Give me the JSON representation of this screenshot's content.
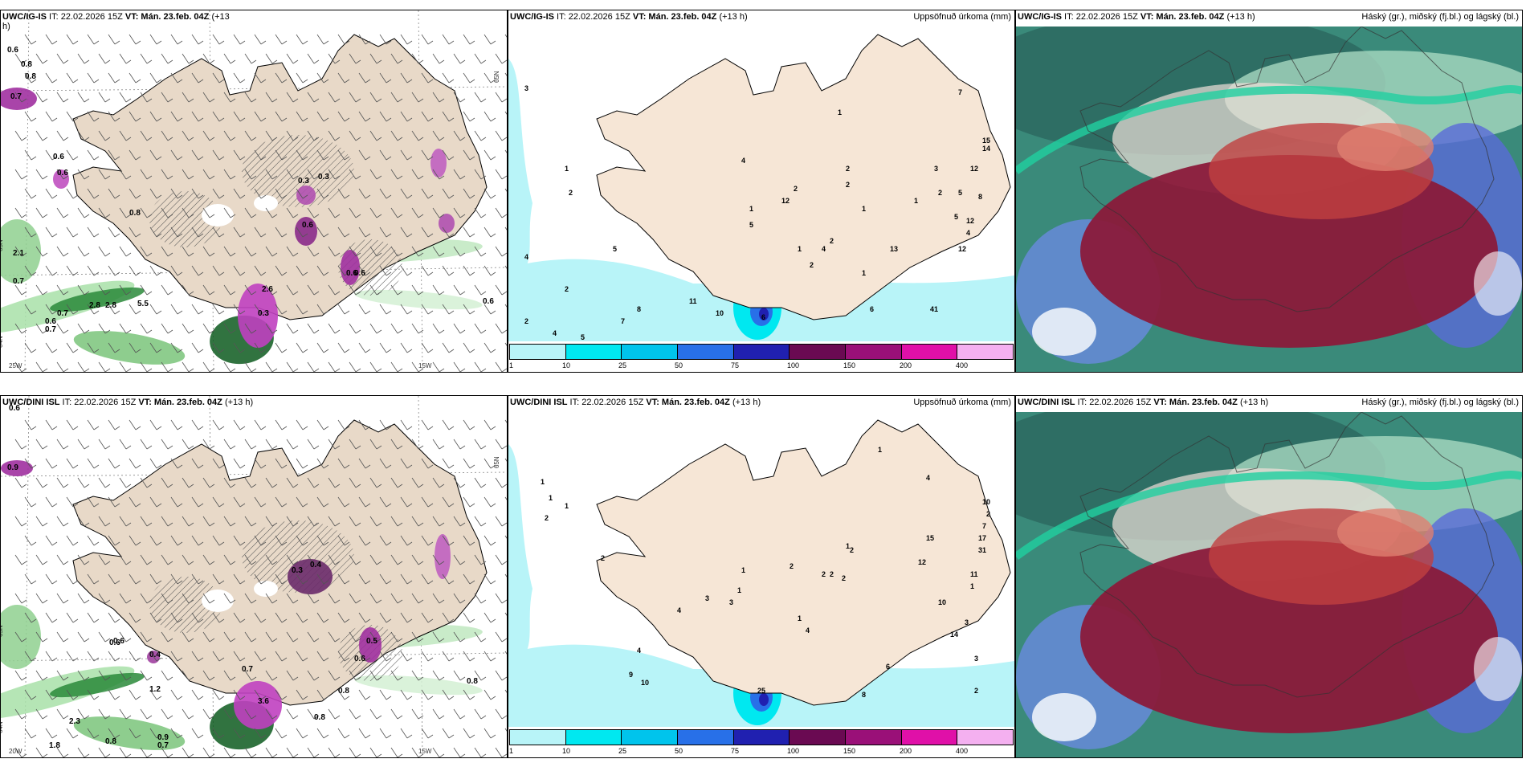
{
  "panels": [
    {
      "id": "top-left",
      "title_model": "UWC/IG-IS",
      "title_rest": " IT: 22.02.2026 15Z ",
      "title_vt": "VT: Mán. 23.feb. 04Z",
      "title_suffix": " (+13",
      "title_line2": "h)",
      "right_title": "",
      "values": [
        "0.6",
        "0.8",
        "0.8",
        "0.7",
        "0.6",
        "0.6",
        "0.8",
        "2.1",
        "0.7",
        "0.6",
        "0.7",
        "2.8",
        "2.8",
        "5.5",
        "0.3",
        "0.3",
        "0.6",
        "2.6",
        "0.3",
        "0.6",
        "0.6",
        "0.7",
        "0.6"
      ],
      "axis": [
        "25W",
        "15W",
        "64N",
        "65N",
        "65N"
      ]
    },
    {
      "id": "top-middle",
      "title_model": "UWC/IG-IS",
      "title_rest": " IT: 22.02.2026 15Z ",
      "title_vt": "VT: Mán. 23.feb. 04Z",
      "title_suffix": " (+13 h)",
      "right_title": "Uppsöfnuð úrkoma (mm)",
      "values": [
        "3",
        "1",
        "2",
        "4",
        "5",
        "2",
        "2",
        "4",
        "5",
        "7",
        "8",
        "11",
        "10",
        "6",
        "6",
        "41",
        "13",
        "4",
        "12",
        "5",
        "1",
        "7",
        "2",
        "2",
        "1",
        "1",
        "2",
        "2",
        "1",
        "15",
        "14",
        "12",
        "8",
        "5",
        "12",
        "4",
        "5",
        "12",
        "3",
        "1",
        "2",
        "4",
        "2",
        "1"
      ]
    },
    {
      "id": "top-right",
      "title_model": "UWC/IG-IS",
      "title_rest": " IT: 22.02.2026 15Z ",
      "title_vt": "VT: Mán. 23.feb. 04Z",
      "title_suffix": " (+13 h)",
      "right_title": "Háský (gr.), miðský (fj.bl.) og lágský (bl.)"
    },
    {
      "id": "bottom-left",
      "title_model": "UWC/DINI ISL",
      "title_rest": " IT: 22.02.2026 15Z ",
      "title_vt": "VT: Mán. 23.feb. 04Z",
      "title_suffix": " (+13 h)",
      "right_title": "",
      "values": [
        "0.9",
        "0.6",
        "0.6",
        "0.4",
        "0.3",
        "0.4",
        "0.6",
        "0.5",
        "0.7",
        "0.6",
        "0.8",
        "1.2",
        "2.3",
        "3.6",
        "0.8",
        "0.8",
        "0.9",
        "0.7",
        "1.8",
        "0.8"
      ],
      "axis": [
        "20W",
        "15W",
        "64N",
        "65N",
        "65N"
      ]
    },
    {
      "id": "bottom-middle",
      "title_model": "UWC/DINI ISL",
      "title_rest": " IT: 22.02.2026 15Z ",
      "title_vt": "VT: Mán. 23.feb. 04Z",
      "title_suffix": " (+13 h)",
      "right_title": "Uppsöfnuð úrkoma (mm)",
      "values": [
        "1",
        "1",
        "1",
        "2",
        "2",
        "4",
        "3",
        "4",
        "9",
        "10",
        "25",
        "42",
        "8",
        "6",
        "3",
        "2",
        "1",
        "4",
        "10",
        "2",
        "7",
        "17",
        "31",
        "15",
        "12",
        "1",
        "11",
        "10",
        "3",
        "14",
        "2",
        "2",
        "1",
        "2",
        "2",
        "1",
        "2",
        "1",
        "4",
        "3",
        "1"
      ]
    },
    {
      "id": "bottom-right",
      "title_model": "UWC/DINI ISL",
      "title_rest": " IT: 22.02.2026 15Z ",
      "title_vt": "VT: Mán. 23.feb. 04Z",
      "title_suffix": " (+13 h)",
      "right_title": "Háský (gr.), miðský (fj.bl.) og lágský (bl.)"
    }
  ],
  "legend": {
    "ticks": [
      "1",
      "10",
      "25",
      "50",
      "75",
      "100",
      "150",
      "200",
      "400"
    ],
    "colors": [
      "#b8f4f8",
      "#00e8f0",
      "#00c4ec",
      "#2870e8",
      "#2020b0",
      "#6a0a52",
      "#9a1078",
      "#e010a8",
      "#f4b0f0"
    ]
  }
}
